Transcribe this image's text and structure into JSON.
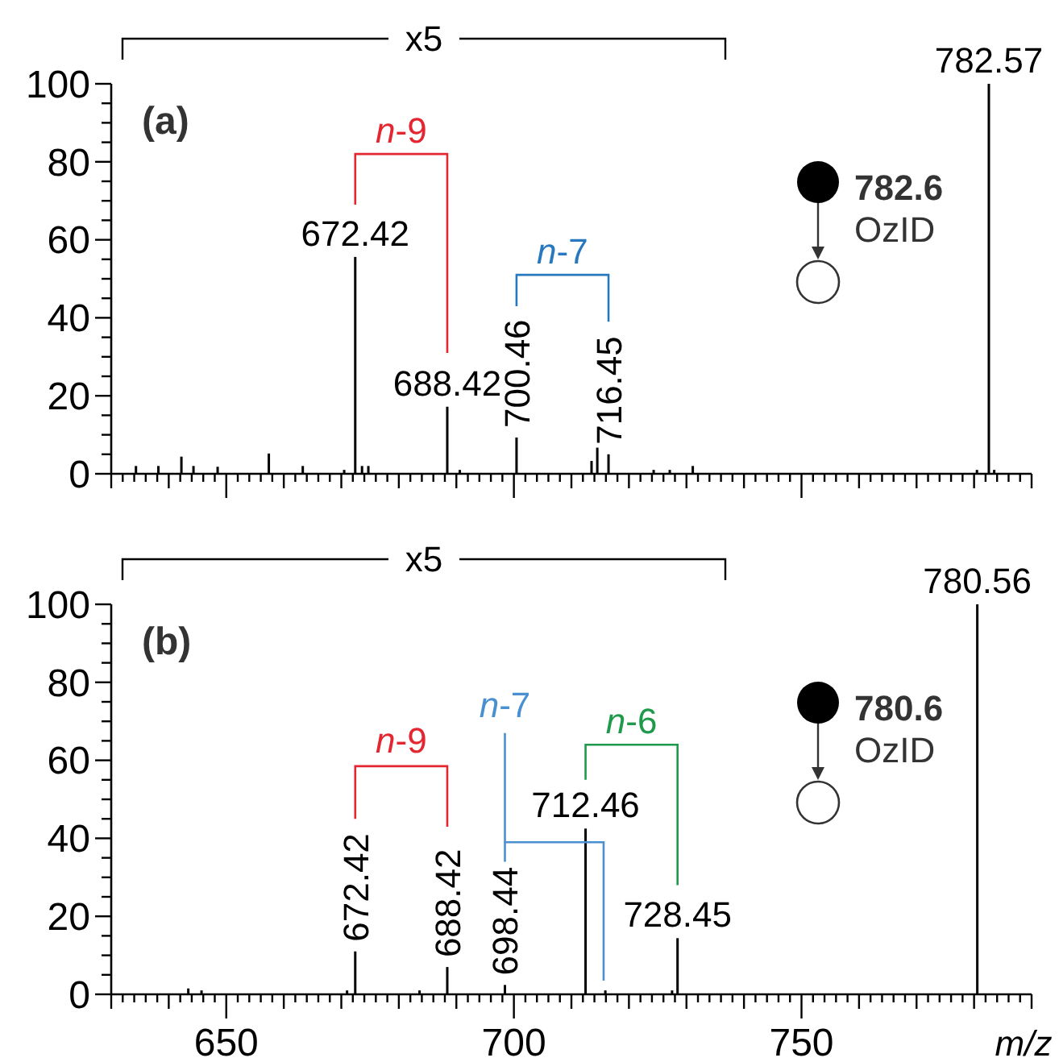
{
  "chart_data": [
    {
      "type": "bar",
      "annotations": [
        "(a)",
        "x5",
        "782.6",
        "OzID",
        "n-9",
        "n-7",
        {
          "text": "672.42",
          "x": 672.42,
          "y": 55.6
        },
        {
          "text": "688.42",
          "x": 688.42,
          "y": 17.2
        },
        {
          "text": "700.46",
          "x": 700.46,
          "y": 9.3
        },
        {
          "text": "716.45",
          "x": 716.45,
          "y": 5
        },
        {
          "text": "782.57",
          "x": 782.57,
          "y": 100
        }
      ],
      "tick_labels": "y",
      "xlim": [
        630,
        790
      ],
      "xticks": [
        {
          "value": 630,
          "label": null
        },
        {
          "value": 632,
          "label": null
        },
        {
          "value": 634,
          "label": null
        },
        {
          "value": 636,
          "label": null
        },
        {
          "value": 638,
          "label": null
        },
        {
          "value": 640,
          "label": null
        },
        {
          "value": 642,
          "label": null
        },
        {
          "value": 644,
          "label": null
        },
        {
          "value": 646,
          "label": null
        },
        {
          "value": 648,
          "label": null
        },
        650,
        {
          "value": 652,
          "label": null
        },
        {
          "value": 654,
          "label": null
        },
        {
          "value": 656,
          "label": null
        },
        {
          "value": 658,
          "label": null
        },
        {
          "value": 660,
          "label": null
        },
        {
          "value": 662,
          "label": null
        },
        {
          "value": 664,
          "label": null
        },
        {
          "value": 666,
          "label": null
        },
        {
          "value": 668,
          "label": null
        },
        {
          "value": 670,
          "label": null
        },
        {
          "value": 672,
          "label": null
        },
        {
          "value": 674,
          "label": null
        },
        {
          "value": 676,
          "label": null
        },
        {
          "value": 678,
          "label": null
        },
        {
          "value": 680,
          "label": null
        },
        {
          "value": 682,
          "label": null
        },
        {
          "value": 684,
          "label": null
        },
        {
          "value": 686,
          "label": null
        },
        {
          "value": 688,
          "label": null
        },
        {
          "value": 690,
          "label": null
        },
        {
          "value": 692,
          "label": null
        },
        {
          "value": 694,
          "label": null
        },
        {
          "value": 696,
          "label": null
        },
        {
          "value": 698,
          "label": null
        },
        700,
        {
          "value": 702,
          "label": null
        },
        {
          "value": 704,
          "label": null
        },
        {
          "value": 706,
          "label": null
        },
        {
          "value": 708,
          "label": null
        },
        {
          "value": 710,
          "label": null
        },
        {
          "value": 712,
          "label": null
        },
        {
          "value": 714,
          "label": null
        },
        {
          "value": 716,
          "label": null
        },
        {
          "value": 718,
          "label": null
        },
        {
          "value": 720,
          "label": null
        },
        {
          "value": 722,
          "label": null
        },
        {
          "value": 724,
          "label": null
        },
        {
          "value": 726,
          "label": null
        },
        {
          "value": 728,
          "label": null
        },
        {
          "value": 730,
          "label": null
        },
        {
          "value": 732,
          "label": null
        },
        {
          "value": 734,
          "label": null
        },
        {
          "value": 736,
          "label": null
        },
        {
          "value": 738,
          "label": null
        },
        {
          "value": 740,
          "label": null
        },
        {
          "value": 742,
          "label": null
        },
        {
          "value": 744,
          "label": null
        },
        {
          "value": 746,
          "label": null
        },
        {
          "value": 748,
          "label": null
        },
        750,
        {
          "value": 752,
          "label": null
        },
        {
          "value": 754,
          "label": null
        },
        {
          "value": 756,
          "label": null
        },
        {
          "value": 758,
          "label": null
        },
        {
          "value": 760,
          "label": null
        },
        {
          "value": 762,
          "label": null
        },
        {
          "value": 764,
          "label": null
        },
        {
          "value": 766,
          "label": null
        },
        {
          "value": 768,
          "label": null
        },
        {
          "value": 770,
          "label": null
        },
        {
          "value": 772,
          "label": null
        },
        {
          "value": 774,
          "label": null
        },
        {
          "value": 776,
          "label": null
        },
        {
          "value": 778,
          "label": null
        },
        {
          "value": 780,
          "label": null
        },
        {
          "value": 782,
          "label": null
        },
        {
          "value": 784,
          "label": null
        },
        {
          "value": 786,
          "label": null
        },
        {
          "value": 788,
          "label": null
        },
        {
          "value": 790,
          "label": null
        }
      ],
      "ylim": [
        0,
        100
      ],
      "yticks": [
        0,
        {
          "value": 5,
          "label": null
        },
        {
          "value": 10,
          "label": null
        },
        {
          "value": 15,
          "label": null
        },
        20,
        {
          "value": 25,
          "label": null
        },
        {
          "value": 30,
          "label": null
        },
        {
          "value": 35,
          "label": null
        },
        40,
        {
          "value": 45,
          "label": null
        },
        {
          "value": 50,
          "label": null
        },
        {
          "value": 55,
          "label": null
        },
        60,
        {
          "value": 65,
          "label": null
        },
        {
          "value": 70,
          "label": null
        },
        {
          "value": 75,
          "label": null
        },
        80,
        {
          "value": 85,
          "label": null
        },
        {
          "value": 90,
          "label": null
        },
        {
          "value": 95,
          "label": null
        },
        100
      ],
      "series": [
        {
          "color": "#000000",
          "x": [
            634.3,
            638.2,
            642.2,
            644.3,
            648.5,
            657.4,
            663.3,
            670.5,
            672.42,
            673.6,
            674.7,
            688.42,
            690.6,
            700.46,
            713.5,
            714.5,
            716.45,
            724.3,
            727.1,
            731.1,
            780.5,
            782.57,
            783.5
          ],
          "values": [
            2,
            2,
            4.4,
            2,
            1.8,
            5.2,
            2,
            1,
            55.6,
            2,
            2,
            17.2,
            1,
            9.3,
            3.3,
            6.7,
            5,
            1,
            1,
            2,
            1,
            100,
            1
          ]
        }
      ]
    },
    {
      "type": "bar",
      "annotations": [
        "(b)",
        "x5",
        "780.6",
        "OzID",
        "n-9",
        "n-7",
        "n-6",
        {
          "text": "672.42",
          "x": 672.42,
          "y": 11
        },
        {
          "text": "688.42",
          "x": 688.42,
          "y": 7
        },
        {
          "text": "698.44",
          "x": 698.44,
          "y": 2.4
        },
        {
          "text": "712.46",
          "x": 712.46,
          "y": 42.5
        },
        {
          "text": "728.45",
          "x": 728.45,
          "y": 14.4
        },
        {
          "text": "780.56",
          "x": 780.56,
          "y": 100
        }
      ],
      "xlabel": "m/z",
      "xlim": [
        630,
        790
      ],
      "xticks": [
        {
          "value": 630,
          "label": null
        },
        {
          "value": 632,
          "label": null
        },
        {
          "value": 634,
          "label": null
        },
        {
          "value": 636,
          "label": null
        },
        {
          "value": 638,
          "label": null
        },
        {
          "value": 640,
          "label": null
        },
        {
          "value": 642,
          "label": null
        },
        {
          "value": 644,
          "label": null
        },
        {
          "value": 646,
          "label": null
        },
        {
          "value": 648,
          "label": null
        },
        650,
        {
          "value": 652,
          "label": null
        },
        {
          "value": 654,
          "label": null
        },
        {
          "value": 656,
          "label": null
        },
        {
          "value": 658,
          "label": null
        },
        {
          "value": 660,
          "label": null
        },
        {
          "value": 662,
          "label": null
        },
        {
          "value": 664,
          "label": null
        },
        {
          "value": 666,
          "label": null
        },
        {
          "value": 668,
          "label": null
        },
        {
          "value": 670,
          "label": null
        },
        {
          "value": 672,
          "label": null
        },
        {
          "value": 674,
          "label": null
        },
        {
          "value": 676,
          "label": null
        },
        {
          "value": 678,
          "label": null
        },
        {
          "value": 680,
          "label": null
        },
        {
          "value": 682,
          "label": null
        },
        {
          "value": 684,
          "label": null
        },
        {
          "value": 686,
          "label": null
        },
        {
          "value": 688,
          "label": null
        },
        {
          "value": 690,
          "label": null
        },
        {
          "value": 692,
          "label": null
        },
        {
          "value": 694,
          "label": null
        },
        {
          "value": 696,
          "label": null
        },
        {
          "value": 698,
          "label": null
        },
        700,
        {
          "value": 702,
          "label": null
        },
        {
          "value": 704,
          "label": null
        },
        {
          "value": 706,
          "label": null
        },
        {
          "value": 708,
          "label": null
        },
        {
          "value": 710,
          "label": null
        },
        {
          "value": 712,
          "label": null
        },
        {
          "value": 714,
          "label": null
        },
        {
          "value": 716,
          "label": null
        },
        {
          "value": 718,
          "label": null
        },
        {
          "value": 720,
          "label": null
        },
        {
          "value": 722,
          "label": null
        },
        {
          "value": 724,
          "label": null
        },
        {
          "value": 726,
          "label": null
        },
        {
          "value": 728,
          "label": null
        },
        {
          "value": 730,
          "label": null
        },
        {
          "value": 732,
          "label": null
        },
        {
          "value": 734,
          "label": null
        },
        {
          "value": 736,
          "label": null
        },
        {
          "value": 738,
          "label": null
        },
        {
          "value": 740,
          "label": null
        },
        {
          "value": 742,
          "label": null
        },
        {
          "value": 744,
          "label": null
        },
        {
          "value": 746,
          "label": null
        },
        {
          "value": 748,
          "label": null
        },
        750,
        {
          "value": 752,
          "label": null
        },
        {
          "value": 754,
          "label": null
        },
        {
          "value": 756,
          "label": null
        },
        {
          "value": 758,
          "label": null
        },
        {
          "value": 760,
          "label": null
        },
        {
          "value": 762,
          "label": null
        },
        {
          "value": 764,
          "label": null
        },
        {
          "value": 766,
          "label": null
        },
        {
          "value": 768,
          "label": null
        },
        {
          "value": 770,
          "label": null
        },
        {
          "value": 772,
          "label": null
        },
        {
          "value": 774,
          "label": null
        },
        {
          "value": 776,
          "label": null
        },
        {
          "value": 778,
          "label": null
        },
        {
          "value": 780,
          "label": null
        },
        {
          "value": 782,
          "label": null
        },
        {
          "value": 784,
          "label": null
        },
        {
          "value": 786,
          "label": null
        },
        {
          "value": 788,
          "label": null
        },
        {
          "value": 790,
          "label": null
        }
      ],
      "ylim": [
        0,
        100
      ],
      "yticks": [
        0,
        {
          "value": 5,
          "label": null
        },
        {
          "value": 10,
          "label": null
        },
        {
          "value": 15,
          "label": null
        },
        20,
        {
          "value": 25,
          "label": null
        },
        {
          "value": 30,
          "label": null
        },
        {
          "value": 35,
          "label": null
        },
        40,
        {
          "value": 45,
          "label": null
        },
        {
          "value": 50,
          "label": null
        },
        {
          "value": 55,
          "label": null
        },
        60,
        {
          "value": 65,
          "label": null
        },
        {
          "value": 70,
          "label": null
        },
        {
          "value": 75,
          "label": null
        },
        80,
        {
          "value": 85,
          "label": null
        },
        {
          "value": 90,
          "label": null
        },
        {
          "value": 95,
          "label": null
        },
        100
      ],
      "series": [
        {
          "color": "#000000",
          "x": [
            643.4,
            645.7,
            671,
            672.42,
            683.6,
            688.42,
            698.44,
            712.46,
            715.9,
            727.5,
            728.45,
            780.56
          ],
          "values": [
            1.5,
            1,
            1,
            11,
            1,
            7,
            2.4,
            42.5,
            1,
            1,
            14.4,
            100
          ]
        }
      ]
    }
  ]
}
